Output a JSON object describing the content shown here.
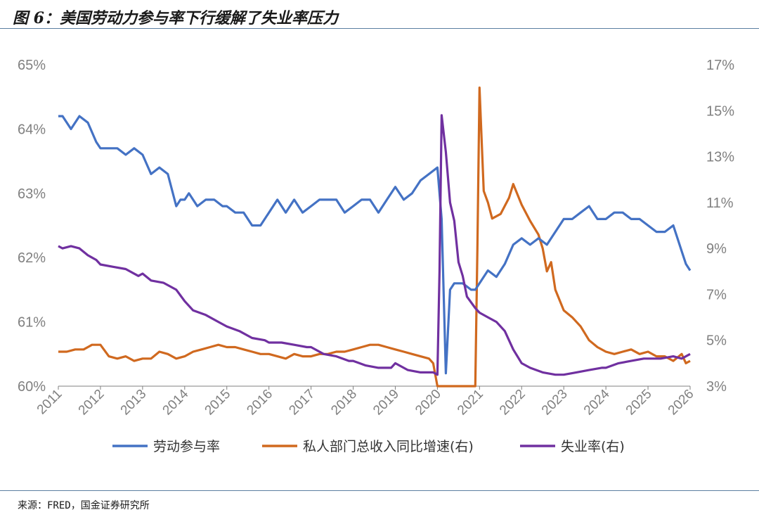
{
  "title": "图 6：美国劳动力参与率下行缓解了失业率压力",
  "source": "来源：FRED，国金证券研究所",
  "colors": {
    "lfpr": "#4472C4",
    "wage": "#D0691F",
    "unemp": "#7030A0",
    "axis": "#808080"
  },
  "chart_data": {
    "type": "line",
    "x_ticks": [
      "2011",
      "2012",
      "2013",
      "2014",
      "2015",
      "2016",
      "2017",
      "2018",
      "2019",
      "2020",
      "2021",
      "2022",
      "2023",
      "2024",
      "2025",
      "2026"
    ],
    "y_left": {
      "min": 60,
      "max": 65,
      "step": 1,
      "ticks": [
        "60%",
        "61%",
        "62%",
        "63%",
        "64%",
        "65%"
      ]
    },
    "y_right": {
      "min": 3,
      "max": 17,
      "step": 2,
      "ticks": [
        "3%",
        "5%",
        "7%",
        "9%",
        "11%",
        "13%",
        "15%",
        "17%"
      ]
    },
    "legend": [
      "劳动参与率",
      "私人部门总收入同比增速(右)",
      "失业率(右)"
    ],
    "series": [
      {
        "name": "劳动参与率",
        "axis": "left",
        "points": [
          [
            2011.0,
            64.2
          ],
          [
            2011.1,
            64.2
          ],
          [
            2011.3,
            64.0
          ],
          [
            2011.5,
            64.2
          ],
          [
            2011.7,
            64.1
          ],
          [
            2011.9,
            63.8
          ],
          [
            2012.0,
            63.7
          ],
          [
            2012.2,
            63.7
          ],
          [
            2012.4,
            63.7
          ],
          [
            2012.6,
            63.6
          ],
          [
            2012.8,
            63.7
          ],
          [
            2013.0,
            63.6
          ],
          [
            2013.2,
            63.3
          ],
          [
            2013.4,
            63.4
          ],
          [
            2013.6,
            63.3
          ],
          [
            2013.8,
            62.8
          ],
          [
            2013.9,
            62.9
          ],
          [
            2014.0,
            62.9
          ],
          [
            2014.1,
            63.0
          ],
          [
            2014.3,
            62.8
          ],
          [
            2014.5,
            62.9
          ],
          [
            2014.7,
            62.9
          ],
          [
            2014.9,
            62.8
          ],
          [
            2015.0,
            62.8
          ],
          [
            2015.2,
            62.7
          ],
          [
            2015.4,
            62.7
          ],
          [
            2015.6,
            62.5
          ],
          [
            2015.8,
            62.5
          ],
          [
            2016.0,
            62.7
          ],
          [
            2016.2,
            62.9
          ],
          [
            2016.4,
            62.7
          ],
          [
            2016.6,
            62.9
          ],
          [
            2016.8,
            62.7
          ],
          [
            2017.0,
            62.8
          ],
          [
            2017.2,
            62.9
          ],
          [
            2017.4,
            62.9
          ],
          [
            2017.6,
            62.9
          ],
          [
            2017.8,
            62.7
          ],
          [
            2018.0,
            62.8
          ],
          [
            2018.2,
            62.9
          ],
          [
            2018.4,
            62.9
          ],
          [
            2018.6,
            62.7
          ],
          [
            2018.8,
            62.9
          ],
          [
            2019.0,
            63.1
          ],
          [
            2019.2,
            62.9
          ],
          [
            2019.4,
            63.0
          ],
          [
            2019.6,
            63.2
          ],
          [
            2019.8,
            63.3
          ],
          [
            2020.0,
            63.4
          ],
          [
            2020.1,
            62.6
          ],
          [
            2020.2,
            60.2
          ],
          [
            2020.3,
            61.5
          ],
          [
            2020.4,
            61.6
          ],
          [
            2020.6,
            61.6
          ],
          [
            2020.8,
            61.5
          ],
          [
            2020.9,
            61.5
          ],
          [
            2021.0,
            61.6
          ],
          [
            2021.2,
            61.8
          ],
          [
            2021.4,
            61.7
          ],
          [
            2021.6,
            61.9
          ],
          [
            2021.8,
            62.2
          ],
          [
            2022.0,
            62.3
          ],
          [
            2022.2,
            62.2
          ],
          [
            2022.4,
            62.3
          ],
          [
            2022.6,
            62.2
          ],
          [
            2022.8,
            62.4
          ],
          [
            2023.0,
            62.6
          ],
          [
            2023.2,
            62.6
          ],
          [
            2023.4,
            62.7
          ],
          [
            2023.6,
            62.8
          ],
          [
            2023.8,
            62.6
          ],
          [
            2024.0,
            62.6
          ],
          [
            2024.2,
            62.7
          ],
          [
            2024.4,
            62.7
          ],
          [
            2024.6,
            62.6
          ],
          [
            2024.8,
            62.6
          ],
          [
            2025.0,
            62.5
          ],
          [
            2025.2,
            62.4
          ],
          [
            2025.4,
            62.4
          ],
          [
            2025.6,
            62.5
          ],
          [
            2025.7,
            62.3
          ],
          [
            2025.8,
            62.1
          ],
          [
            2025.9,
            61.9
          ],
          [
            2026.0,
            61.8
          ]
        ]
      },
      {
        "name": "私人部门总收入同比增速(右)",
        "axis": "right",
        "points": [
          [
            2011.0,
            4.5
          ],
          [
            2011.2,
            4.5
          ],
          [
            2011.4,
            4.6
          ],
          [
            2011.6,
            4.6
          ],
          [
            2011.8,
            4.8
          ],
          [
            2012.0,
            4.8
          ],
          [
            2012.2,
            4.3
          ],
          [
            2012.4,
            4.2
          ],
          [
            2012.6,
            4.3
          ],
          [
            2012.8,
            4.1
          ],
          [
            2013.0,
            4.2
          ],
          [
            2013.2,
            4.2
          ],
          [
            2013.4,
            4.5
          ],
          [
            2013.6,
            4.4
          ],
          [
            2013.8,
            4.2
          ],
          [
            2014.0,
            4.3
          ],
          [
            2014.2,
            4.5
          ],
          [
            2014.4,
            4.6
          ],
          [
            2014.6,
            4.7
          ],
          [
            2014.8,
            4.8
          ],
          [
            2015.0,
            4.7
          ],
          [
            2015.2,
            4.7
          ],
          [
            2015.4,
            4.6
          ],
          [
            2015.6,
            4.5
          ],
          [
            2015.8,
            4.4
          ],
          [
            2016.0,
            4.4
          ],
          [
            2016.2,
            4.3
          ],
          [
            2016.4,
            4.2
          ],
          [
            2016.6,
            4.4
          ],
          [
            2016.8,
            4.3
          ],
          [
            2017.0,
            4.3
          ],
          [
            2017.2,
            4.4
          ],
          [
            2017.4,
            4.4
          ],
          [
            2017.6,
            4.5
          ],
          [
            2017.8,
            4.5
          ],
          [
            2018.0,
            4.6
          ],
          [
            2018.2,
            4.7
          ],
          [
            2018.4,
            4.8
          ],
          [
            2018.6,
            4.8
          ],
          [
            2018.8,
            4.7
          ],
          [
            2019.0,
            4.6
          ],
          [
            2019.2,
            4.5
          ],
          [
            2019.4,
            4.4
          ],
          [
            2019.6,
            4.3
          ],
          [
            2019.8,
            4.2
          ],
          [
            2019.9,
            4.0
          ],
          [
            2020.0,
            3.0
          ],
          [
            2020.9,
            3.0
          ],
          [
            2020.95,
            9.0
          ],
          [
            2021.0,
            16.0
          ],
          [
            2021.1,
            11.5
          ],
          [
            2021.2,
            11.0
          ],
          [
            2021.3,
            10.3
          ],
          [
            2021.5,
            10.5
          ],
          [
            2021.7,
            11.2
          ],
          [
            2021.8,
            11.8
          ],
          [
            2022.0,
            10.9
          ],
          [
            2022.2,
            10.2
          ],
          [
            2022.4,
            9.6
          ],
          [
            2022.5,
            9.0
          ],
          [
            2022.6,
            8.0
          ],
          [
            2022.7,
            8.4
          ],
          [
            2022.8,
            7.2
          ],
          [
            2023.0,
            6.3
          ],
          [
            2023.2,
            6.0
          ],
          [
            2023.4,
            5.6
          ],
          [
            2023.6,
            5.0
          ],
          [
            2023.8,
            4.7
          ],
          [
            2024.0,
            4.5
          ],
          [
            2024.2,
            4.4
          ],
          [
            2024.4,
            4.5
          ],
          [
            2024.6,
            4.6
          ],
          [
            2024.8,
            4.4
          ],
          [
            2025.0,
            4.5
          ],
          [
            2025.2,
            4.3
          ],
          [
            2025.4,
            4.3
          ],
          [
            2025.6,
            4.1
          ],
          [
            2025.8,
            4.4
          ],
          [
            2025.9,
            4.0
          ],
          [
            2026.0,
            4.1
          ]
        ]
      },
      {
        "name": "失业率(右)",
        "axis": "right",
        "points": [
          [
            2011.0,
            9.1
          ],
          [
            2011.1,
            9.0
          ],
          [
            2011.3,
            9.1
          ],
          [
            2011.5,
            9.0
          ],
          [
            2011.7,
            8.7
          ],
          [
            2011.9,
            8.5
          ],
          [
            2012.0,
            8.3
          ],
          [
            2012.3,
            8.2
          ],
          [
            2012.6,
            8.1
          ],
          [
            2012.9,
            7.8
          ],
          [
            2013.0,
            7.9
          ],
          [
            2013.2,
            7.6
          ],
          [
            2013.5,
            7.5
          ],
          [
            2013.8,
            7.2
          ],
          [
            2014.0,
            6.7
          ],
          [
            2014.2,
            6.3
          ],
          [
            2014.5,
            6.1
          ],
          [
            2014.8,
            5.8
          ],
          [
            2015.0,
            5.6
          ],
          [
            2015.3,
            5.4
          ],
          [
            2015.6,
            5.1
          ],
          [
            2015.9,
            5.0
          ],
          [
            2016.0,
            4.9
          ],
          [
            2016.3,
            4.9
          ],
          [
            2016.6,
            4.8
          ],
          [
            2016.9,
            4.7
          ],
          [
            2017.0,
            4.7
          ],
          [
            2017.3,
            4.4
          ],
          [
            2017.6,
            4.3
          ],
          [
            2017.9,
            4.1
          ],
          [
            2018.0,
            4.1
          ],
          [
            2018.3,
            3.9
          ],
          [
            2018.6,
            3.8
          ],
          [
            2018.9,
            3.8
          ],
          [
            2019.0,
            4.0
          ],
          [
            2019.3,
            3.7
          ],
          [
            2019.6,
            3.6
          ],
          [
            2019.9,
            3.6
          ],
          [
            2020.0,
            3.5
          ],
          [
            2020.05,
            8.0
          ],
          [
            2020.1,
            14.8
          ],
          [
            2020.2,
            13.2
          ],
          [
            2020.3,
            11.0
          ],
          [
            2020.4,
            10.2
          ],
          [
            2020.5,
            8.4
          ],
          [
            2020.6,
            7.8
          ],
          [
            2020.7,
            6.9
          ],
          [
            2020.9,
            6.4
          ],
          [
            2021.0,
            6.2
          ],
          [
            2021.2,
            6.0
          ],
          [
            2021.4,
            5.8
          ],
          [
            2021.6,
            5.4
          ],
          [
            2021.8,
            4.6
          ],
          [
            2022.0,
            4.0
          ],
          [
            2022.2,
            3.8
          ],
          [
            2022.5,
            3.6
          ],
          [
            2022.8,
            3.5
          ],
          [
            2023.0,
            3.5
          ],
          [
            2023.3,
            3.6
          ],
          [
            2023.6,
            3.7
          ],
          [
            2023.9,
            3.8
          ],
          [
            2024.0,
            3.8
          ],
          [
            2024.3,
            4.0
          ],
          [
            2024.6,
            4.1
          ],
          [
            2024.9,
            4.2
          ],
          [
            2025.0,
            4.2
          ],
          [
            2025.3,
            4.2
          ],
          [
            2025.6,
            4.3
          ],
          [
            2025.8,
            4.2
          ],
          [
            2026.0,
            4.4
          ]
        ]
      }
    ]
  }
}
